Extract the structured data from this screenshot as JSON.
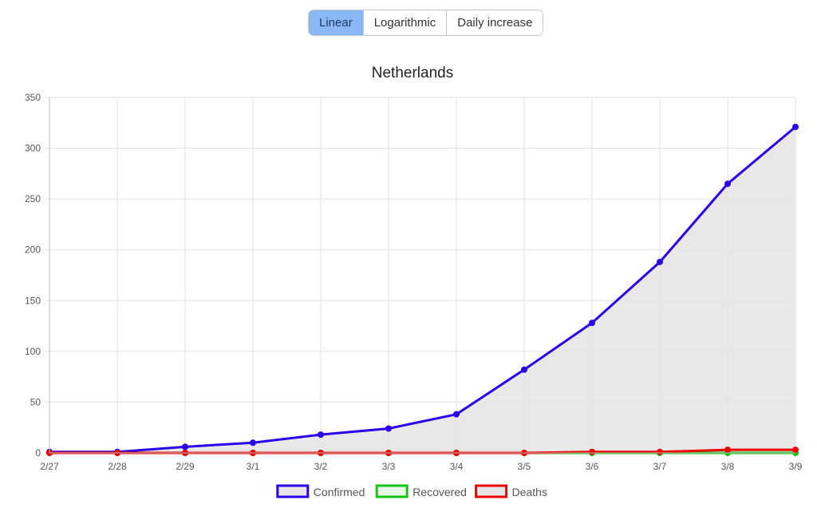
{
  "mode_buttons": {
    "linear": "Linear",
    "logarithmic": "Logarithmic",
    "daily": "Daily increase",
    "active": "linear"
  },
  "chart_data": {
    "type": "line",
    "title": "Netherlands",
    "categories": [
      "2/27",
      "2/28",
      "2/29",
      "3/1",
      "3/2",
      "3/3",
      "3/4",
      "3/5",
      "3/6",
      "3/7",
      "3/8",
      "3/9"
    ],
    "ylim": [
      0,
      350
    ],
    "yticks": [
      0,
      50,
      100,
      150,
      200,
      250,
      300,
      350
    ],
    "grid": true,
    "legend_position": "bottom",
    "series": [
      {
        "name": "Confirmed",
        "color": "#2a00e8",
        "fill": "#e5e5e5",
        "values": [
          1,
          1,
          6,
          10,
          18,
          24,
          38,
          82,
          128,
          188,
          265,
          321
        ]
      },
      {
        "name": "Recovered",
        "color": "#11c511",
        "fill": "#e6f7e6",
        "values": [
          0,
          0,
          0,
          0,
          0,
          0,
          0,
          0,
          0,
          0,
          0,
          0
        ]
      },
      {
        "name": "Deaths",
        "color": "#ee0000",
        "fill": "#e5e5e5",
        "values": [
          0,
          0,
          0,
          0,
          0,
          0,
          0,
          0,
          1,
          1,
          3,
          3
        ]
      }
    ]
  }
}
